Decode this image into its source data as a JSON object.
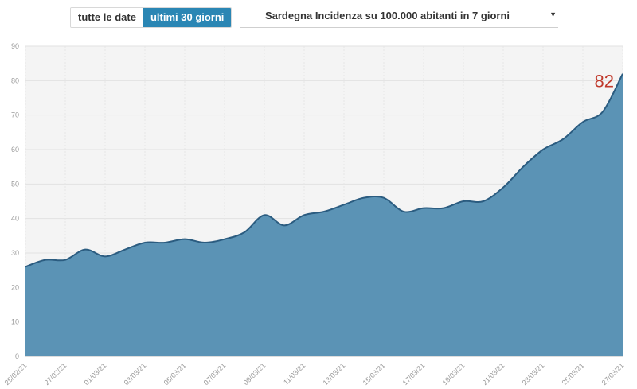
{
  "controls": {
    "range_options": [
      {
        "label": "tutte le date",
        "active": false
      },
      {
        "label": "ultimi 30 giorni",
        "active": true
      }
    ],
    "metric_select": {
      "value": "Sardegna Incidenza su 100.000 abitanti in 7 giorni",
      "caret_icon": "caret-down-icon"
    }
  },
  "colors": {
    "accent": "#2a86b4",
    "area_fill": "#5b93b5",
    "line": "#2b5c80",
    "plot_background": "#f4f4f4",
    "highlight_label": "#c0392b"
  },
  "chart_data": {
    "type": "area",
    "x": [
      "25/02/21",
      "26/02/21",
      "27/02/21",
      "28/02/21",
      "01/03/21",
      "02/03/21",
      "03/03/21",
      "04/03/21",
      "05/03/21",
      "06/03/21",
      "07/03/21",
      "08/03/21",
      "09/03/21",
      "10/03/21",
      "11/03/21",
      "12/03/21",
      "13/03/21",
      "14/03/21",
      "15/03/21",
      "16/03/21",
      "17/03/21",
      "18/03/21",
      "19/03/21",
      "20/03/21",
      "21/03/21",
      "22/03/21",
      "23/03/21",
      "24/03/21",
      "25/03/21",
      "26/03/21",
      "27/03/21"
    ],
    "values": [
      26,
      28,
      28,
      31,
      29,
      31,
      33,
      33,
      34,
      33,
      34,
      36,
      41,
      38,
      41,
      42,
      44,
      46,
      46,
      42,
      43,
      43,
      45,
      45,
      49,
      55,
      60,
      63,
      68,
      71,
      82
    ],
    "x_tick_labels": [
      "25/02/21",
      "27/02/21",
      "01/03/21",
      "03/03/21",
      "05/03/21",
      "07/03/21",
      "09/03/21",
      "11/03/21",
      "13/03/21",
      "15/03/21",
      "17/03/21",
      "19/03/21",
      "21/03/21",
      "23/03/21",
      "25/03/21",
      "27/03/21"
    ],
    "y_ticks": [
      0,
      10,
      20,
      30,
      40,
      50,
      60,
      70,
      80,
      90
    ],
    "ylim": [
      0,
      90
    ],
    "grid": true,
    "last_value_label": "82"
  }
}
